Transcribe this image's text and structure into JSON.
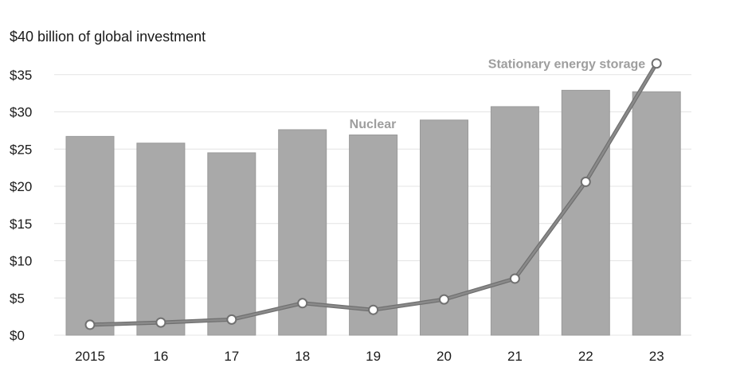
{
  "chart_data": {
    "type": "bar",
    "title": "$40 billion of global investment",
    "categories": [
      "2015",
      "16",
      "17",
      "18",
      "19",
      "20",
      "21",
      "22",
      "23"
    ],
    "y_ticks": [
      "$0",
      "$5",
      "$10",
      "$15",
      "$20",
      "$25",
      "$30",
      "$35"
    ],
    "ylim": [
      0,
      40
    ],
    "grid": true,
    "series": [
      {
        "name": "Nuclear",
        "type": "bar",
        "values": [
          26.7,
          25.8,
          24.5,
          27.6,
          26.9,
          28.9,
          30.7,
          32.9,
          32.7
        ]
      },
      {
        "name": "Stationary energy storage",
        "type": "line",
        "values": [
          1.4,
          1.7,
          2.1,
          4.3,
          3.4,
          4.8,
          7.6,
          20.6,
          36.5
        ]
      }
    ],
    "colors": {
      "bar": "#a9a9a9",
      "bar_edge": "#9a9a9a",
      "line": "#8a8a8a",
      "line_edge": "#707070",
      "marker_fill": "#ffffff",
      "grid": "#e4e4e4",
      "series_label": "#9e9e9e"
    }
  }
}
